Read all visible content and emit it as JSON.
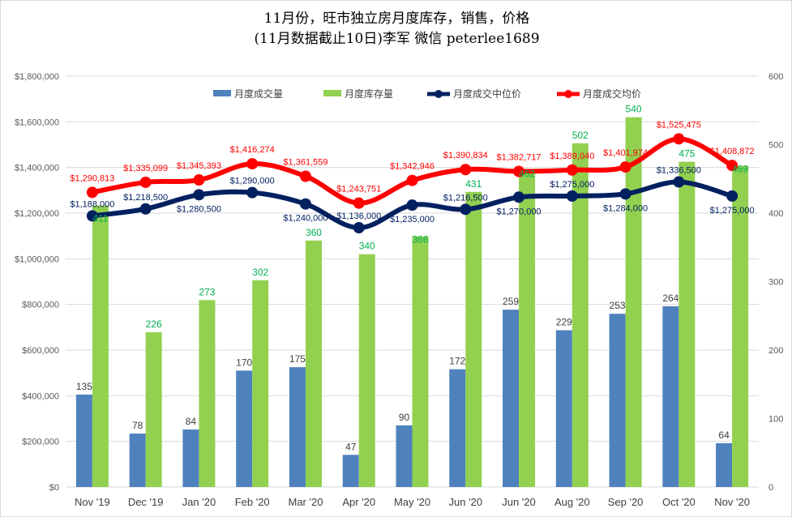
{
  "chart_data": {
    "type": "bar+line",
    "title": "11月份，旺市独立房月度库存，销售，价格",
    "subtitle": "(11月数据截止10日)李军 微信 peterlee1689",
    "categories": [
      "Nov '19",
      "Dec '19",
      "Jan '20",
      "Feb '20",
      "Mar '20",
      "Apr '20",
      "May '20",
      "Jun '20",
      "Jun '20",
      "Aug '20",
      "Sep '20",
      "Oct '20",
      "Nov '20"
    ],
    "left_axis": {
      "ylim": [
        0,
        1800000
      ],
      "ticks": [
        "$0",
        "$200,000",
        "$400,000",
        "$600,000",
        "$800,000",
        "$1,000,000",
        "$1,200,000",
        "$1,400,000",
        "$1,600,000",
        "$1,800,000"
      ]
    },
    "right_axis": {
      "ylim": [
        0,
        600
      ],
      "ticks": [
        "0",
        "100",
        "200",
        "300",
        "400",
        "500",
        "600"
      ]
    },
    "legend_position": "top",
    "grid": true,
    "series": [
      {
        "name": "月度成交量",
        "type": "bar",
        "axis": "right",
        "color": "#4f81bd",
        "label_color": "#404040",
        "values": [
          135,
          78,
          84,
          170,
          175,
          47,
          90,
          172,
          259,
          229,
          253,
          264,
          64
        ],
        "labels": [
          "135",
          "78",
          "84",
          "170",
          "175",
          "47",
          "90",
          "172",
          "259",
          "229",
          "253",
          "264",
          "64"
        ]
      },
      {
        "name": "月度库存量",
        "type": "bar",
        "axis": "right",
        "color": "#92d050",
        "label_color": "#00b050",
        "values": [
          411,
          226,
          273,
          302,
          360,
          340,
          366,
          431,
          462,
          502,
          540,
          475,
          469
        ],
        "labels": [
          "411",
          "226",
          "273",
          "302",
          "360",
          "340",
          "366",
          "431",
          "462",
          "502",
          "540",
          "475",
          "469"
        ]
      },
      {
        "name": "月度成交中位价",
        "type": "line",
        "axis": "left",
        "color": "#002060",
        "label_color": "#002060",
        "values": [
          1188000,
          1218500,
          1280500,
          1290000,
          1240000,
          1136000,
          1235000,
          1216500,
          1270000,
          1275000,
          1284000,
          1336500,
          1275000
        ],
        "labels": [
          "$1,188,000",
          "$1,218,500",
          "$1,280,500",
          "$1,290,000",
          "$1,240,000",
          "$1,136,000",
          "$1,235,000",
          "$1,216,500",
          "$1,270,000",
          "$1,275,000",
          "$1,284,000",
          "$1,336,500",
          "$1,275,000"
        ]
      },
      {
        "name": "月度成交均价",
        "type": "line",
        "axis": "left",
        "color": "#ff0000",
        "label_color": "#ff0000",
        "values": [
          1290813,
          1335099,
          1345393,
          1416274,
          1361559,
          1243751,
          1342946,
          1390834,
          1382717,
          1389040,
          1401974,
          1525475,
          1408872
        ],
        "labels": [
          "$1,290,813",
          "$1,335,099",
          "$1,345,393",
          "$1,416,274",
          "$1,361,559",
          "$1,243,751",
          "$1,342,946",
          "$1,390,834",
          "$1,382,717",
          "$1,389,040",
          "$1,401,974",
          "$1,525,475",
          "$1,408,872"
        ]
      }
    ]
  }
}
